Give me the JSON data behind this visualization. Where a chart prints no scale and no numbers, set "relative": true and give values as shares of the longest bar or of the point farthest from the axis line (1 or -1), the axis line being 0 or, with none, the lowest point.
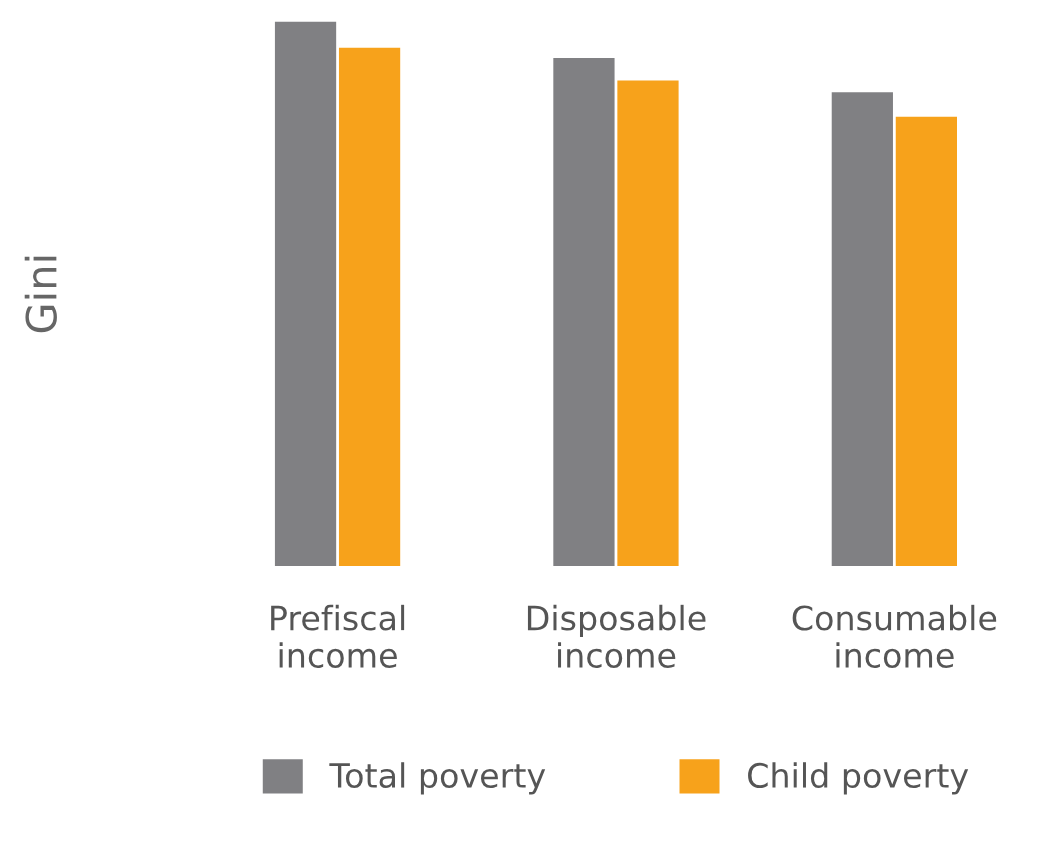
{
  "chart_data": {
    "type": "bar",
    "relative": true,
    "ylabel": "Gini",
    "categories": [
      "Prefiscal\nincome",
      "Disposable\nincome",
      "Consumable\nincome"
    ],
    "series": [
      {
        "name": "Total poverty",
        "color": "#808083",
        "values": [
          1,
          0.933,
          0.87
        ]
      },
      {
        "name": "Child poverty",
        "color": "#f7a21b",
        "values": [
          0.952,
          0.892,
          0.825
        ]
      }
    ],
    "legend": "bottom",
    "grid": false
  }
}
